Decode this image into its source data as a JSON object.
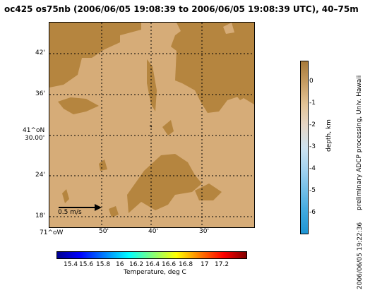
{
  "title": "oc425 os75nb (2006/06/05 19:08:39 to 2006/06/05 19:08:39 UTC), 40–75m",
  "map": {
    "lat_labels": [
      "42'",
      "36'",
      "41^oN\n30.00'",
      "24'",
      "18'"
    ],
    "lon_labels": [
      "71^oW",
      "50'",
      "40'",
      "30'"
    ],
    "scale_label": "0.5 m/s",
    "land_color": "#b5853f",
    "shallow_color": "#d6ac78"
  },
  "depth_colorbar": {
    "ticks": [
      "0",
      "-1",
      "-2",
      "-3",
      "-4",
      "-5",
      "-6"
    ],
    "label": "depth, km"
  },
  "side_text": "preliminary ADCP processing,  Univ. Hawaii",
  "date_text": "2006/06/05 19:22:36",
  "temp_colorbar": {
    "ticks": [
      "15.4",
      "15.6",
      "15.8",
      "16",
      "16.2",
      "16.4",
      "16.6",
      "16.8",
      "17",
      "17.2"
    ],
    "label": "Temperature, deg C"
  }
}
